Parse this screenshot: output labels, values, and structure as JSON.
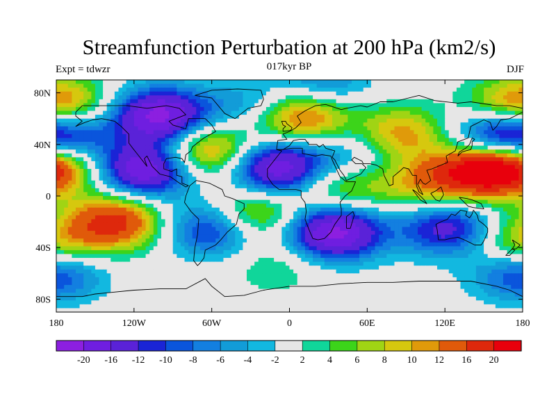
{
  "title": "Streamfunction Perturbation at 200 hPa (km2/s)",
  "left_label": "Expt = tdwzr",
  "center_label": "017kyr BP",
  "right_label": "DJF",
  "chart_data": {
    "type": "heatmap",
    "title": "Streamfunction Perturbation at 200 hPa (km2/s)",
    "projection": "cylindrical equidistant",
    "xlim": [
      -180,
      180
    ],
    "ylim": [
      -90,
      90
    ],
    "x_ticks": [
      {
        "value": -180,
        "label": "180"
      },
      {
        "value": -120,
        "label": "120W"
      },
      {
        "value": -60,
        "label": "60W"
      },
      {
        "value": 0,
        "label": "0"
      },
      {
        "value": 60,
        "label": "60E"
      },
      {
        "value": 120,
        "label": "120E"
      },
      {
        "value": 180,
        "label": "180"
      }
    ],
    "y_ticks": [
      {
        "value": 80,
        "label": "80N"
      },
      {
        "value": 40,
        "label": "40N"
      },
      {
        "value": 0,
        "label": "0"
      },
      {
        "value": -40,
        "label": "40S"
      },
      {
        "value": -80,
        "label": "80S"
      }
    ],
    "colorbar": {
      "levels": [
        -20,
        -16,
        -12,
        -10,
        -8,
        -6,
        -4,
        -2,
        2,
        4,
        6,
        8,
        10,
        12,
        16,
        20
      ],
      "labels": [
        "-20",
        "-16",
        "-12",
        "-10",
        "-8",
        "-6",
        "-4",
        "-2",
        "2",
        "4",
        "6",
        "8",
        "10",
        "12",
        "16",
        "20"
      ],
      "colors": [
        "#8c1fe0",
        "#6f1ee0",
        "#5a22d8",
        "#1a24d6",
        "#0a55dc",
        "#137fe0",
        "#129cd8",
        "#12b8e0",
        "#e6e6e6",
        "#10d69a",
        "#3cd41a",
        "#a0d414",
        "#d6c80e",
        "#e09a0a",
        "#e05a0a",
        "#de280c",
        "#e8000c"
      ]
    },
    "anomalies": [
      {
        "lon": -135,
        "lat": -20,
        "value": 18
      },
      {
        "lon": -100,
        "lat": 62,
        "value": -22
      },
      {
        "lon": -112,
        "lat": 20,
        "value": -20
      },
      {
        "lon": -58,
        "lat": -25,
        "value": -14
      },
      {
        "lon": -62,
        "lat": 35,
        "value": 14
      },
      {
        "lon": -10,
        "lat": 22,
        "value": -20
      },
      {
        "lon": 35,
        "lat": -28,
        "value": -22
      },
      {
        "lon": 150,
        "lat": 20,
        "value": 22
      },
      {
        "lon": 10,
        "lat": 62,
        "value": 16
      },
      {
        "lon": 85,
        "lat": 48,
        "value": 12
      },
      {
        "lon": 122,
        "lat": -25,
        "value": -14
      },
      {
        "lon": 178,
        "lat": -38,
        "value": 10
      },
      {
        "lon": -180,
        "lat": 25,
        "value": 14
      },
      {
        "lon": -175,
        "lat": 45,
        "value": -14
      },
      {
        "lon": 158,
        "lat": 45,
        "value": -12
      },
      {
        "lon": -30,
        "lat": -15,
        "value": 12
      },
      {
        "lon": 40,
        "lat": 5,
        "value": 8
      },
      {
        "lon": -170,
        "lat": 70,
        "value": 8
      },
      {
        "lon": 170,
        "lat": 72,
        "value": 8
      },
      {
        "lon": -30,
        "lat": 70,
        "value": -6
      },
      {
        "lon": 25,
        "lat": 85,
        "value": -8
      },
      {
        "lon": 50,
        "lat": 35,
        "value": -6
      },
      {
        "lon": -178,
        "lat": -60,
        "value": -6
      },
      {
        "lon": 175,
        "lat": -60,
        "value": -6
      },
      {
        "lon": -10,
        "lat": -55,
        "value": 4
      },
      {
        "lon": 105,
        "lat": 10,
        "value": 10
      }
    ]
  }
}
